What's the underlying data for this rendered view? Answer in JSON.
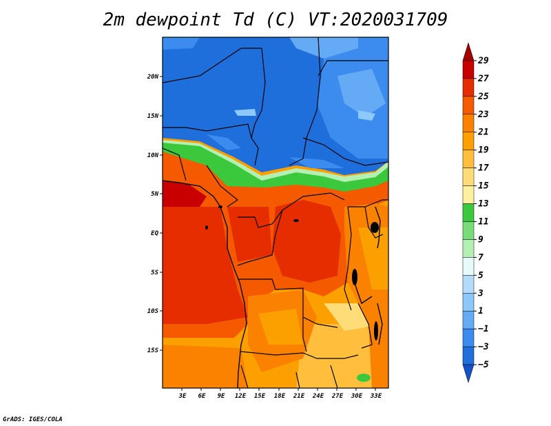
{
  "title": "2m dewpoint Td (C) VT:2020031709",
  "footer": "GrADS: IGES/COLA",
  "map": {
    "lat_ticks": [
      "20N",
      "15N",
      "10N",
      "5N",
      "EQ",
      "5S",
      "10S",
      "15S"
    ],
    "lon_ticks": [
      "3E",
      "6E",
      "9E",
      "12E",
      "15E",
      "18E",
      "21E",
      "24E",
      "27E",
      "30E",
      "33E"
    ],
    "lat_range": [
      -20,
      25
    ],
    "lon_range": [
      0,
      35
    ]
  },
  "colorbar": {
    "levels": [
      "29",
      "27",
      "25",
      "23",
      "21",
      "19",
      "17",
      "15",
      "13",
      "11",
      "9",
      "7",
      "5",
      "3",
      "1",
      "−1",
      "−3",
      "−5"
    ],
    "colors": [
      "#a50000",
      "#c80000",
      "#e62d00",
      "#f55a00",
      "#fa8200",
      "#fca000",
      "#ffbe3c",
      "#ffdc78",
      "#fff0a0",
      "#3cc83c",
      "#78dc78",
      "#b4f0b4",
      "#e6fafa",
      "#b4dcfa",
      "#8cc8fa",
      "#64aaf5",
      "#3c8cf0",
      "#1e6edc",
      "#1450c8"
    ]
  }
}
